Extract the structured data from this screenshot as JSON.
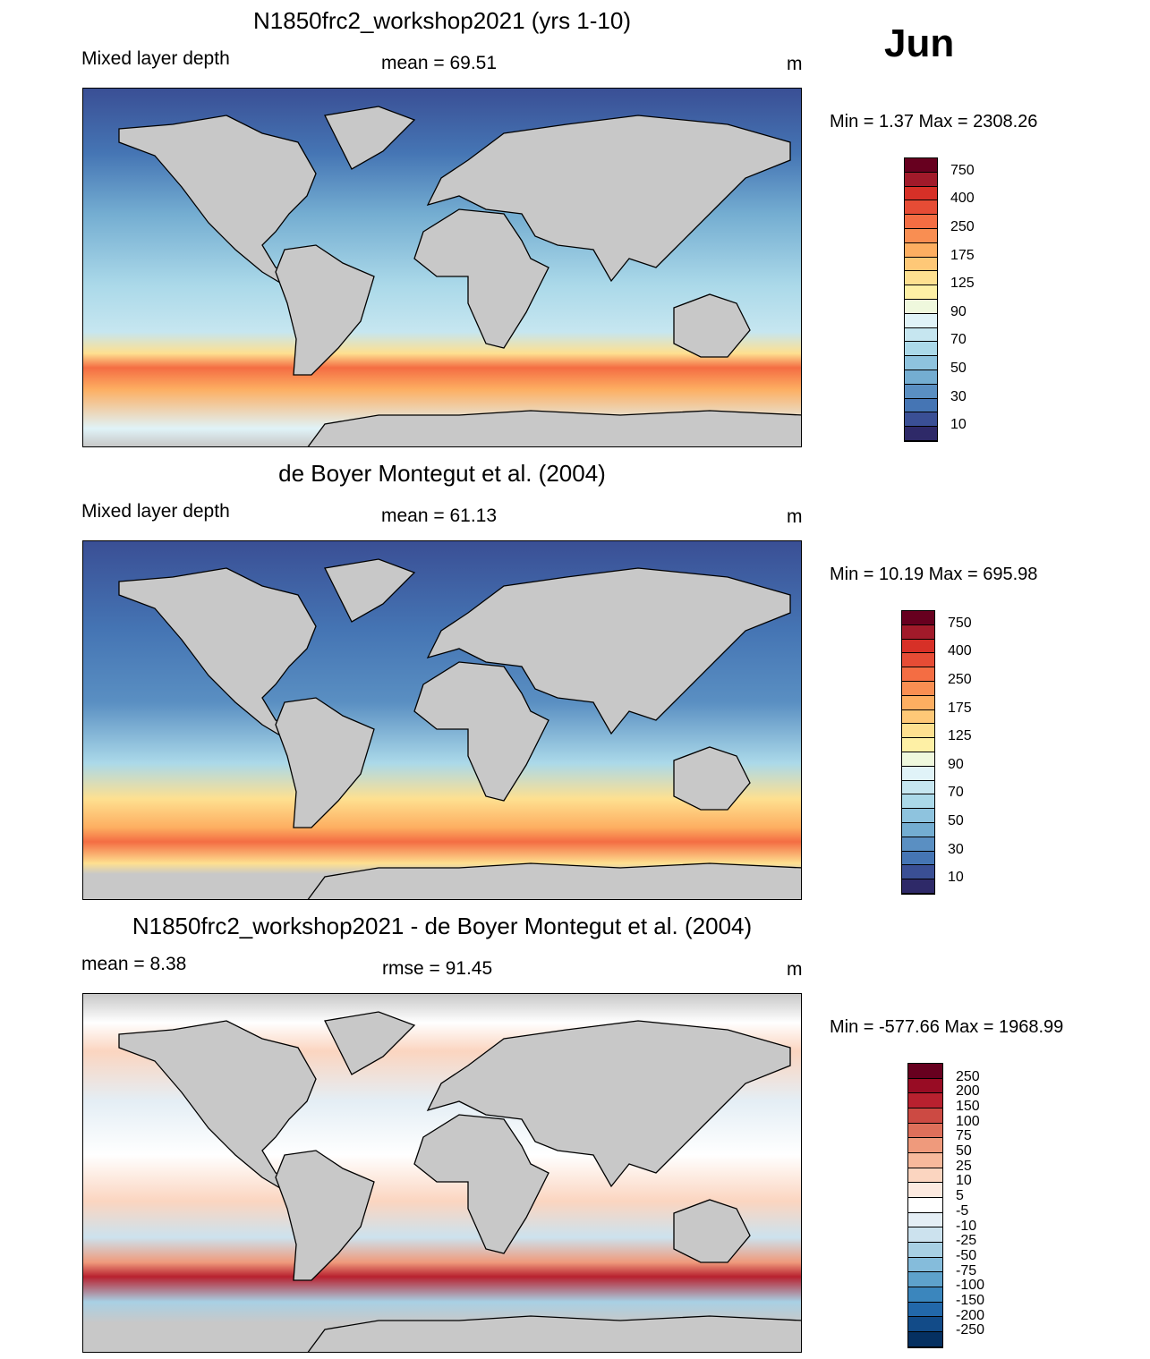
{
  "month": "Jun",
  "panels": [
    {
      "title": "N1850frc2_workshop2021 (yrs 1-10)",
      "left_label": "Mixed layer depth",
      "center_label": "mean =  69.51",
      "units": "m",
      "minmax": "Min =    1.37 Max = 2308.26",
      "colorbar": {
        "labels": [
          "750",
          "400",
          "250",
          "175",
          "125",
          "90",
          "70",
          "50",
          "30",
          "10"
        ],
        "colors": [
          "#67001f",
          "#a11a2a",
          "#d73027",
          "#e64c35",
          "#f46d43",
          "#f98e52",
          "#fdae61",
          "#fec877",
          "#fee090",
          "#fef0a5",
          "#eff8dd",
          "#e0f3f8",
          "#c6e6f0",
          "#abd9e9",
          "#8ec3de",
          "#74add1",
          "#5a8fc2",
          "#4575b4",
          "#3a4f95",
          "#2e2968"
        ]
      }
    },
    {
      "title": "de Boyer Montegut et al. (2004)",
      "left_label": "Mixed layer depth",
      "center_label": "mean =  61.13",
      "units": "m",
      "minmax": "Min =  10.19 Max = 695.98",
      "colorbar": {
        "labels": [
          "750",
          "400",
          "250",
          "175",
          "125",
          "90",
          "70",
          "50",
          "30",
          "10"
        ],
        "colors": [
          "#67001f",
          "#a11a2a",
          "#d73027",
          "#e64c35",
          "#f46d43",
          "#f98e52",
          "#fdae61",
          "#fec877",
          "#fee090",
          "#fef0a5",
          "#eff8dd",
          "#e0f3f8",
          "#c6e6f0",
          "#abd9e9",
          "#8ec3de",
          "#74add1",
          "#5a8fc2",
          "#4575b4",
          "#3a4f95",
          "#2e2968"
        ]
      }
    },
    {
      "title": "N1850frc2_workshop2021 - de Boyer Montegut et al. (2004)",
      "left_label": "mean =    8.38",
      "center_label": "rmse =  91.45",
      "units": "m",
      "minmax": "Min = -577.66 Max = 1968.99",
      "colorbar": {
        "labels": [
          "250",
          "200",
          "150",
          "100",
          "75",
          "50",
          "25",
          "10",
          "5",
          "-5",
          "-10",
          "-25",
          "-50",
          "-75",
          "-100",
          "-150",
          "-200",
          "-250"
        ],
        "colors": [
          "#67001f",
          "#980c24",
          "#b8212f",
          "#cc4a43",
          "#de6f5a",
          "#ef9a7c",
          "#f7b99c",
          "#fbd5c0",
          "#fdeae0",
          "#ffffff",
          "#e4eef5",
          "#cce2ee",
          "#a8d0e4",
          "#85bcdb",
          "#5ea2cc",
          "#3b86bd",
          "#2268aa",
          "#124b88",
          "#053061"
        ]
      }
    }
  ]
}
